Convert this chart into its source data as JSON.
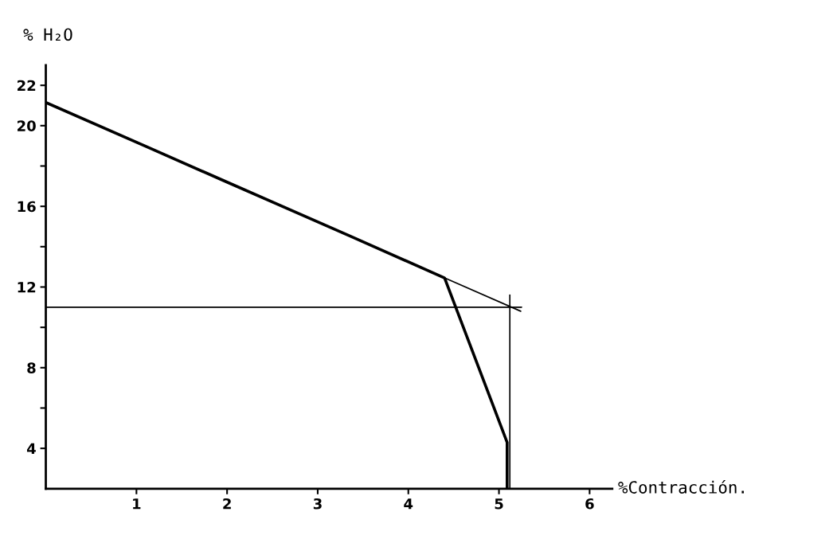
{
  "chart_data": {
    "type": "line",
    "xlabel": "%Contracción.",
    "ylabel": "% H₂O",
    "xlim": [
      0,
      6.25
    ],
    "xticks": [
      1,
      2,
      3,
      4,
      5,
      6
    ],
    "ylim": [
      2,
      23
    ],
    "yticks": [
      4,
      {
        "value": 6,
        "label": null
      },
      8,
      {
        "value": 10,
        "label": null
      },
      12,
      {
        "value": 14,
        "label": null
      },
      16,
      {
        "value": 18,
        "label": null
      },
      20,
      22
    ],
    "grid": false,
    "line_style": "solid",
    "series": [
      {
        "color": "#000000",
        "x": [
          0,
          1.14,
          1.95,
          3.37,
          4.4,
          5.09,
          5.09
        ],
        "values": [
          21.15,
          18.9,
          17.3,
          14.5,
          12.45,
          4.3,
          2
        ]
      },
      {
        "color": "#000000",
        "x": [
          4.4,
          5.24
        ],
        "values": [
          12.45,
          10.8
        ]
      },
      {
        "color": "#000000",
        "x": [
          0,
          5.25
        ],
        "values": [
          11.0,
          11.0
        ]
      },
      {
        "color": "#000000",
        "x": [
          5.12,
          5.12
        ],
        "values": [
          2,
          11.6
        ]
      }
    ]
  }
}
